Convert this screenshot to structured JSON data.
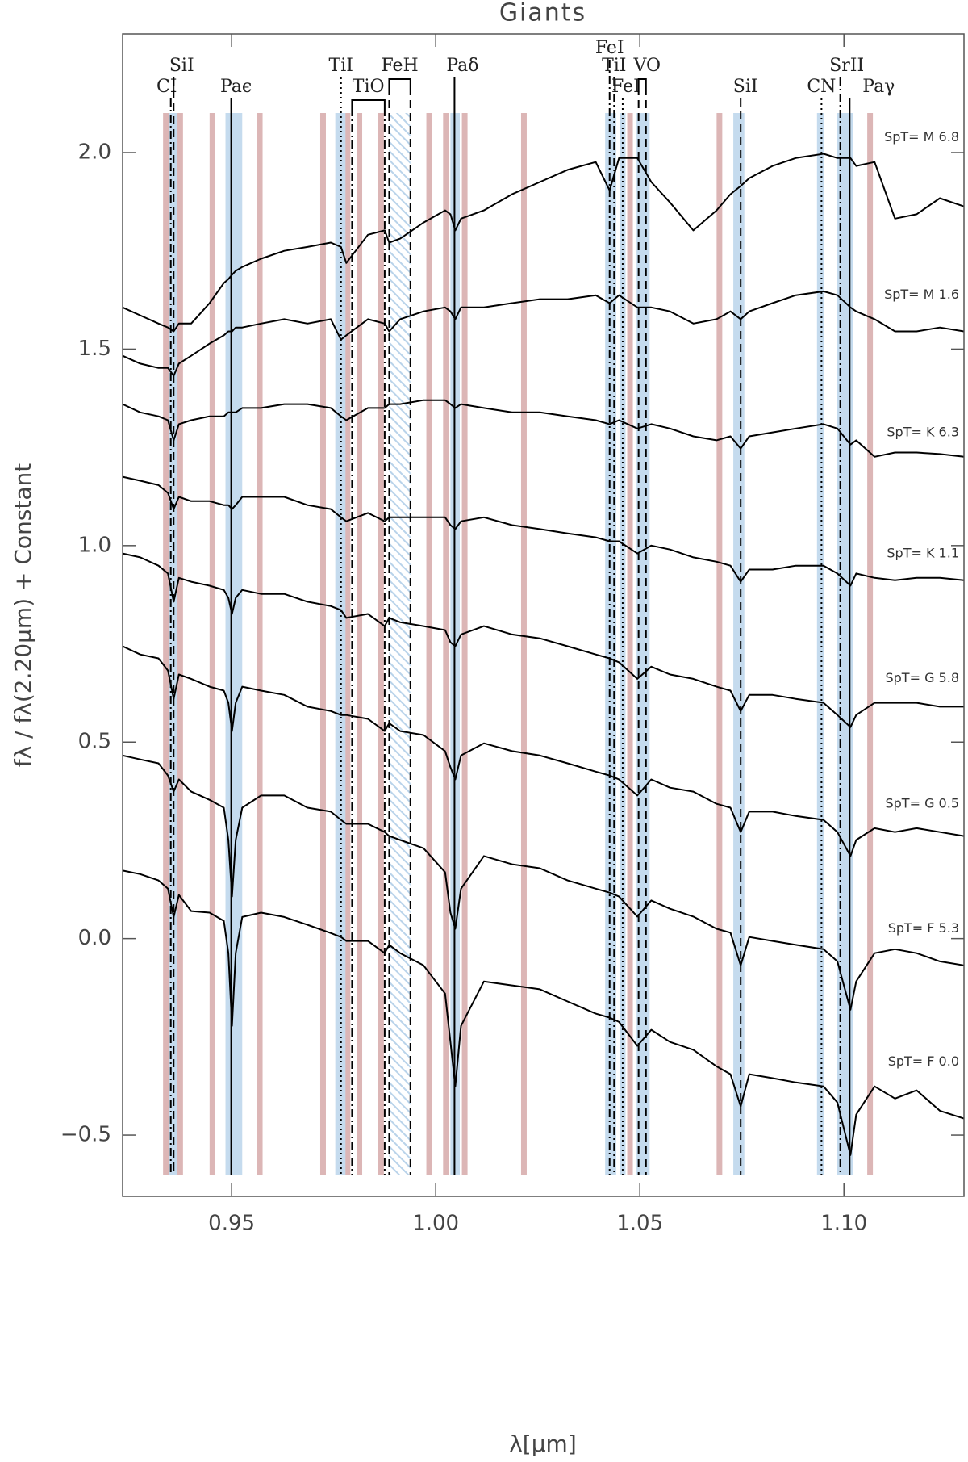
{
  "chart_data": {
    "type": "line",
    "title": "Giants",
    "xlabel": "λ[μm]",
    "ylabel": "fλ / fλ(2.20μm) + Constant",
    "xlim": [
      0.9233,
      1.1294
    ],
    "ylim": [
      -0.656,
      2.302
    ],
    "xticks": [
      0.95,
      {
        "value": 1,
        "label": "1.00"
      },
      1.05,
      {
        "value": 1.1,
        "label": "1.10"
      }
    ],
    "yticks": [
      {
        "value": -0.5,
        "label": "−0.5"
      },
      {
        "value": 0,
        "label": "0.0"
      },
      0.5,
      {
        "value": 1,
        "label": "1.0"
      },
      1.5,
      {
        "value": 2,
        "label": "2.0"
      }
    ],
    "line_color": "#000000",
    "telluric_color": "#dcb6b6",
    "band_color": "#c5dbee",
    "x": [
      0.9233,
      0.9276,
      0.9321,
      0.9344,
      0.9358,
      0.9371,
      0.9401,
      0.9446,
      0.9481,
      0.9492,
      0.9501,
      0.951,
      0.9526,
      0.9572,
      0.9629,
      0.9686,
      0.9743,
      0.9768,
      0.9781,
      0.9834,
      0.9875,
      0.9886,
      0.9913,
      0.997,
      1.0023,
      1.0036,
      1.0048,
      1.0062,
      1.0118,
      1.0187,
      1.0255,
      1.0323,
      1.0392,
      1.0426,
      1.0449,
      1.0494,
      1.0528,
      1.0574,
      1.0631,
      1.0688,
      1.0722,
      1.0747,
      1.0768,
      1.0825,
      1.0882,
      1.095,
      1.0984,
      1.1016,
      1.103,
      1.1075,
      1.1125,
      1.1178,
      1.1235,
      1.1294
    ],
    "series": [
      {
        "name": "SpT= M 6.8",
        "values": [
          1.606,
          1.586,
          1.565,
          1.555,
          1.545,
          1.565,
          1.565,
          1.617,
          1.668,
          1.678,
          1.689,
          1.699,
          1.709,
          1.73,
          1.75,
          1.76,
          1.771,
          1.76,
          1.719,
          1.791,
          1.802,
          1.771,
          1.781,
          1.822,
          1.853,
          1.843,
          1.802,
          1.832,
          1.853,
          1.894,
          1.925,
          1.956,
          1.976,
          1.904,
          1.986,
          1.986,
          1.925,
          1.873,
          1.802,
          1.853,
          1.894,
          1.915,
          1.935,
          1.966,
          1.986,
          1.997,
          1.986,
          1.986,
          1.966,
          1.976,
          1.832,
          1.843,
          1.884,
          1.863
        ]
      },
      {
        "name": "SpT= M 1.6",
        "values": [
          1.483,
          1.463,
          1.452,
          1.452,
          1.432,
          1.463,
          1.483,
          1.514,
          1.535,
          1.545,
          1.545,
          1.555,
          1.555,
          1.565,
          1.576,
          1.565,
          1.576,
          1.524,
          1.535,
          1.576,
          1.565,
          1.545,
          1.576,
          1.596,
          1.606,
          1.596,
          1.576,
          1.606,
          1.606,
          1.617,
          1.627,
          1.627,
          1.637,
          1.617,
          1.637,
          1.606,
          1.606,
          1.596,
          1.565,
          1.576,
          1.596,
          1.576,
          1.596,
          1.617,
          1.637,
          1.647,
          1.637,
          1.606,
          1.596,
          1.576,
          1.545,
          1.545,
          1.555,
          1.545
        ]
      },
      {
        "name": "SpT= K 6.3",
        "values": [
          1.36,
          1.339,
          1.329,
          1.319,
          1.268,
          1.309,
          1.319,
          1.329,
          1.329,
          1.339,
          1.339,
          1.339,
          1.35,
          1.35,
          1.36,
          1.36,
          1.35,
          1.329,
          1.319,
          1.35,
          1.35,
          1.36,
          1.36,
          1.37,
          1.37,
          1.36,
          1.35,
          1.36,
          1.35,
          1.339,
          1.339,
          1.329,
          1.319,
          1.309,
          1.319,
          1.298,
          1.309,
          1.298,
          1.278,
          1.268,
          1.278,
          1.247,
          1.278,
          1.288,
          1.298,
          1.309,
          1.298,
          1.257,
          1.268,
          1.226,
          1.237,
          1.237,
          1.233,
          1.226
        ]
      },
      {
        "name": "SpT= K 1.1",
        "values": [
          1.175,
          1.165,
          1.154,
          1.134,
          1.093,
          1.124,
          1.113,
          1.113,
          1.103,
          1.103,
          1.093,
          1.103,
          1.124,
          1.124,
          1.124,
          1.103,
          1.093,
          1.072,
          1.062,
          1.083,
          1.062,
          1.072,
          1.072,
          1.072,
          1.072,
          1.052,
          1.042,
          1.062,
          1.072,
          1.052,
          1.042,
          1.031,
          1.021,
          1.011,
          1.011,
          0.98,
          1.0,
          0.99,
          0.97,
          0.959,
          0.949,
          0.908,
          0.939,
          0.939,
          0.949,
          0.949,
          0.929,
          0.898,
          0.929,
          0.918,
          0.912,
          0.918,
          0.918,
          0.912
        ]
      },
      {
        "name": "SpT= G 5.8",
        "values": [
          0.98,
          0.97,
          0.949,
          0.929,
          0.857,
          0.918,
          0.908,
          0.898,
          0.887,
          0.867,
          0.826,
          0.867,
          0.887,
          0.877,
          0.877,
          0.857,
          0.846,
          0.836,
          0.816,
          0.826,
          0.795,
          0.816,
          0.805,
          0.795,
          0.785,
          0.754,
          0.744,
          0.774,
          0.795,
          0.774,
          0.764,
          0.744,
          0.723,
          0.713,
          0.703,
          0.661,
          0.692,
          0.672,
          0.661,
          0.641,
          0.631,
          0.579,
          0.62,
          0.62,
          0.61,
          0.6,
          0.569,
          0.538,
          0.569,
          0.6,
          0.6,
          0.6,
          0.59,
          0.59
        ]
      },
      {
        "name": "SpT= G 0.5",
        "values": [
          0.744,
          0.723,
          0.713,
          0.682,
          0.61,
          0.672,
          0.661,
          0.641,
          0.631,
          0.6,
          0.528,
          0.6,
          0.641,
          0.631,
          0.62,
          0.59,
          0.579,
          0.569,
          0.569,
          0.559,
          0.528,
          0.548,
          0.528,
          0.518,
          0.477,
          0.436,
          0.405,
          0.466,
          0.497,
          0.477,
          0.466,
          0.446,
          0.425,
          0.415,
          0.405,
          0.364,
          0.405,
          0.384,
          0.374,
          0.343,
          0.333,
          0.271,
          0.323,
          0.323,
          0.312,
          0.302,
          0.271,
          0.21,
          0.251,
          0.281,
          0.271,
          0.281,
          0.271,
          0.261
        ]
      },
      {
        "name": "SpT= F 5.3",
        "values": [
          0.466,
          0.456,
          0.446,
          0.415,
          0.374,
          0.405,
          0.374,
          0.353,
          0.333,
          0.251,
          0.107,
          0.251,
          0.333,
          0.364,
          0.364,
          0.333,
          0.323,
          0.302,
          0.292,
          0.292,
          0.271,
          0.261,
          0.251,
          0.23,
          0.169,
          0.066,
          0.025,
          0.127,
          0.21,
          0.189,
          0.179,
          0.148,
          0.127,
          0.117,
          0.107,
          0.056,
          0.097,
          0.076,
          0.056,
          0.025,
          0.015,
          -0.068,
          0.004,
          -0.006,
          -0.016,
          -0.027,
          -0.058,
          -0.181,
          -0.109,
          -0.037,
          -0.027,
          -0.037,
          -0.058,
          -0.068
        ]
      },
      {
        "name": "SpT= F 0.0",
        "values": [
          0.173,
          0.164,
          0.148,
          0.127,
          0.055,
          0.111,
          0.07,
          0.066,
          0.045,
          -0.037,
          -0.222,
          -0.037,
          0.055,
          0.066,
          0.055,
          0.035,
          0.014,
          0.004,
          -0.006,
          -0.006,
          -0.037,
          -0.016,
          -0.037,
          -0.068,
          -0.14,
          -0.263,
          -0.376,
          -0.222,
          -0.109,
          -0.119,
          -0.129,
          -0.16,
          -0.191,
          -0.201,
          -0.212,
          -0.273,
          -0.232,
          -0.263,
          -0.283,
          -0.325,
          -0.345,
          -0.427,
          -0.345,
          -0.355,
          -0.366,
          -0.376,
          -0.417,
          -0.551,
          -0.448,
          -0.376,
          -0.407,
          -0.386,
          -0.438,
          -0.458
        ]
      }
    ],
    "telluric_lines": [
      0.9339,
      0.9374,
      0.9453,
      0.9569,
      0.9724,
      0.9784,
      0.9813,
      0.9866,
      0.9984,
      1.0025,
      1.0071,
      1.0216,
      1.0476,
      1.0695,
      1.1064
    ],
    "feature_bands": [
      [
        0.9346,
        0.9367
      ],
      [
        0.9485,
        0.9526
      ],
      [
        0.9754,
        0.9779
      ],
      [
        1.0036,
        1.0059
      ],
      [
        1.0415,
        1.0442
      ],
      [
        1.0451,
        1.0465
      ],
      [
        1.0492,
        1.0524
      ],
      [
        1.0729,
        1.0756
      ],
      [
        1.0934,
        1.0952
      ],
      [
        1.0982,
        1.1023
      ]
    ],
    "hatched_band": [
      0.9886,
      0.9938
    ],
    "features": [
      {
        "label": "CI",
        "x": 0.9351,
        "style": "dashdot"
      },
      {
        "label": "SiI",
        "x": 0.9358,
        "style": "dashed"
      },
      {
        "label": "Paϵ",
        "x": 0.9499,
        "style": "solid"
      },
      {
        "label": "TiI",
        "x": 0.9768,
        "style": "dotted"
      },
      {
        "label": "TiO",
        "x": [
          0.9795,
          0.9875
        ],
        "style": "dashdot"
      },
      {
        "label": "FeH",
        "x": [
          0.9886,
          0.9938
        ],
        "style": "dashed"
      },
      {
        "label": "Paδ",
        "x": 1.0046,
        "style": "solid"
      },
      {
        "label": "FeI",
        "x": 1.0426,
        "style": "dashdot"
      },
      {
        "label": "TiI",
        "x": 1.0437,
        "style": "dashdot"
      },
      {
        "label": "FeI",
        "x": 1.0458,
        "style": "dotted"
      },
      {
        "label": "VO",
        "x": [
          1.0497,
          1.0515
        ],
        "style": "dashed"
      },
      {
        "label": "SiI",
        "x": 1.0747,
        "style": "dashed"
      },
      {
        "label": "CN",
        "x": 1.0945,
        "style": "dotted"
      },
      {
        "label": "SrII",
        "x": 1.0991,
        "style": "dashdot"
      },
      {
        "label": "Paγ",
        "x": 1.1014,
        "style": "solid"
      }
    ]
  }
}
